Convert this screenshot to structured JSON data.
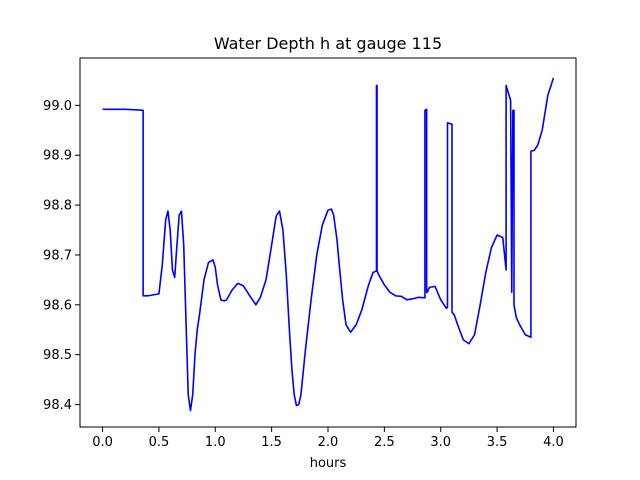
{
  "chart_data": {
    "type": "line",
    "title": "Water Depth h at gauge 115",
    "xlabel": "hours",
    "ylabel": "",
    "xlim": [
      -0.2,
      4.2
    ],
    "ylim": [
      98.355,
      99.095
    ],
    "xticks": [
      0.0,
      0.5,
      1.0,
      1.5,
      2.0,
      2.5,
      3.0,
      3.5,
      4.0
    ],
    "xtick_labels": [
      "0.0",
      "0.5",
      "1.0",
      "1.5",
      "2.0",
      "2.5",
      "3.0",
      "3.5",
      "4.0"
    ],
    "yticks": [
      98.4,
      98.5,
      98.6,
      98.7,
      98.8,
      98.9,
      99.0
    ],
    "ytick_labels": [
      "98.4",
      "98.5",
      "98.6",
      "98.7",
      "98.8",
      "98.9",
      "99.0"
    ],
    "grid": false,
    "legend": "none",
    "series": [
      {
        "color": "#0000ff",
        "x": [
          0.0,
          0.1,
          0.2,
          0.3,
          0.36,
          0.36,
          0.4,
          0.5,
          0.53,
          0.56,
          0.58,
          0.6,
          0.62,
          0.64,
          0.66,
          0.68,
          0.7,
          0.72,
          0.74,
          0.76,
          0.78,
          0.8,
          0.82,
          0.84,
          0.86,
          0.9,
          0.94,
          0.98,
          1.0,
          1.02,
          1.05,
          1.08,
          1.1,
          1.15,
          1.2,
          1.25,
          1.3,
          1.36,
          1.4,
          1.45,
          1.5,
          1.54,
          1.57,
          1.6,
          1.63,
          1.66,
          1.68,
          1.7,
          1.72,
          1.74,
          1.76,
          1.8,
          1.85,
          1.9,
          1.95,
          2.0,
          2.03,
          2.05,
          2.08,
          2.1,
          2.13,
          2.16,
          2.2,
          2.25,
          2.3,
          2.36,
          2.4,
          2.43,
          2.43,
          2.435,
          2.435,
          2.45,
          2.5,
          2.55,
          2.6,
          2.65,
          2.7,
          2.75,
          2.8,
          2.86,
          2.86,
          2.875,
          2.875,
          2.88,
          2.9,
          2.95,
          3.0,
          3.05,
          3.06,
          3.06,
          3.1,
          3.1,
          3.12,
          3.15,
          3.2,
          3.25,
          3.3,
          3.35,
          3.4,
          3.45,
          3.5,
          3.55,
          3.58,
          3.58,
          3.6,
          3.62,
          3.63,
          3.63,
          3.64,
          3.64,
          3.65,
          3.65,
          3.67,
          3.7,
          3.75,
          3.8,
          3.8,
          3.83,
          3.86,
          3.9,
          3.95,
          4.0
        ],
        "y": [
          98.992,
          98.992,
          98.992,
          98.991,
          98.99,
          98.618,
          98.618,
          98.622,
          98.68,
          98.77,
          98.788,
          98.75,
          98.67,
          98.655,
          98.72,
          98.78,
          98.788,
          98.72,
          98.57,
          98.42,
          98.388,
          98.42,
          98.5,
          98.55,
          98.58,
          98.65,
          98.685,
          98.69,
          98.675,
          98.64,
          98.61,
          98.608,
          98.61,
          98.63,
          98.643,
          98.638,
          98.62,
          98.6,
          98.615,
          98.65,
          98.72,
          98.778,
          98.788,
          98.75,
          98.66,
          98.54,
          98.47,
          98.42,
          98.398,
          98.4,
          98.42,
          98.51,
          98.61,
          98.7,
          98.76,
          98.79,
          98.792,
          98.78,
          98.73,
          98.68,
          98.61,
          98.56,
          98.545,
          98.56,
          98.59,
          98.64,
          98.665,
          98.668,
          99.04,
          99.04,
          98.668,
          98.66,
          98.64,
          98.625,
          98.618,
          98.617,
          98.61,
          98.612,
          98.615,
          98.614,
          98.99,
          98.992,
          98.625,
          98.625,
          98.635,
          98.637,
          98.61,
          98.593,
          98.595,
          98.965,
          98.962,
          98.585,
          98.58,
          98.56,
          98.53,
          98.522,
          98.54,
          98.6,
          98.665,
          98.715,
          98.74,
          98.735,
          98.67,
          99.04,
          99.025,
          99.01,
          98.63,
          98.625,
          98.99,
          98.985,
          98.99,
          98.6,
          98.575,
          98.56,
          98.54,
          98.535,
          98.908,
          98.91,
          98.92,
          98.95,
          99.02,
          99.055
        ]
      }
    ]
  }
}
